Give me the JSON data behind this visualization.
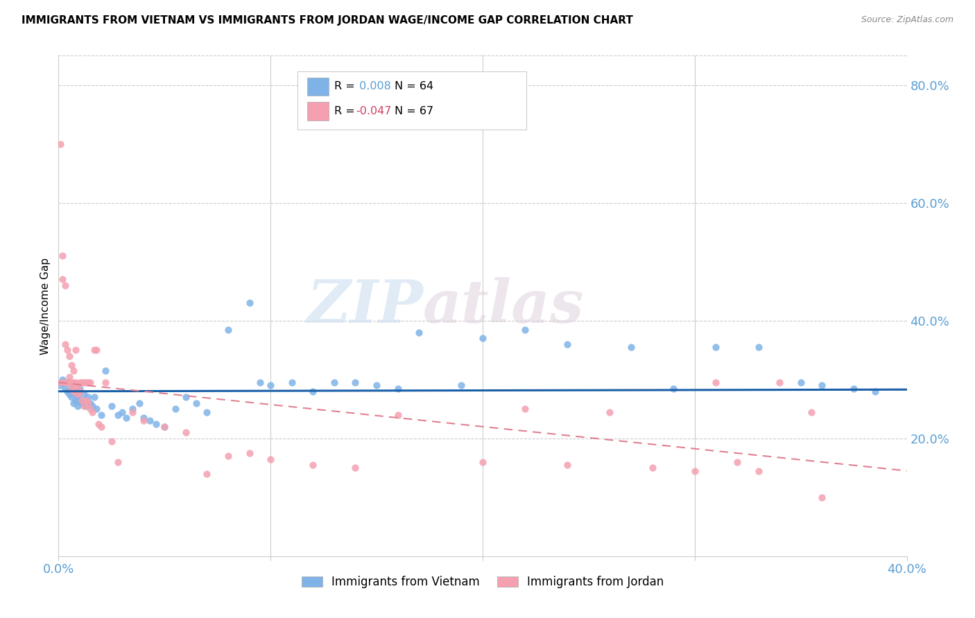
{
  "title": "IMMIGRANTS FROM VIETNAM VS IMMIGRANTS FROM JORDAN WAGE/INCOME GAP CORRELATION CHART",
  "source": "Source: ZipAtlas.com",
  "ylabel": "Wage/Income Gap",
  "right_yticks": [
    20.0,
    40.0,
    60.0,
    80.0
  ],
  "xlim": [
    0.0,
    0.4
  ],
  "ylim": [
    0.0,
    0.85
  ],
  "legend_vietnam": "Immigrants from Vietnam",
  "legend_jordan": "Immigrants from Jordan",
  "R_vietnam": 0.008,
  "N_vietnam": 64,
  "R_jordan": -0.047,
  "N_jordan": 67,
  "color_vietnam": "#7fb3e8",
  "color_jordan": "#f4a0b0",
  "color_trendline_vietnam": "#1a5fa8",
  "color_trendline_jordan": "#e08090",
  "color_axis": "#5a9fd4",
  "color_grid": "#cccccc",
  "watermark_zip": "ZIP",
  "watermark_atlas": "atlas",
  "trendline_vietnam_start": 0.28,
  "trendline_vietnam_end": 0.283,
  "trendline_jordan_start": 0.295,
  "trendline_jordan_end": 0.145,
  "vietnam_x": [
    0.001,
    0.002,
    0.003,
    0.003,
    0.004,
    0.005,
    0.005,
    0.006,
    0.006,
    0.007,
    0.007,
    0.008,
    0.008,
    0.009,
    0.009,
    0.01,
    0.01,
    0.011,
    0.012,
    0.013,
    0.014,
    0.015,
    0.016,
    0.017,
    0.018,
    0.02,
    0.022,
    0.025,
    0.028,
    0.03,
    0.032,
    0.035,
    0.038,
    0.04,
    0.043,
    0.046,
    0.05,
    0.055,
    0.06,
    0.065,
    0.07,
    0.08,
    0.09,
    0.095,
    0.1,
    0.11,
    0.12,
    0.13,
    0.14,
    0.15,
    0.16,
    0.17,
    0.19,
    0.2,
    0.22,
    0.24,
    0.27,
    0.29,
    0.31,
    0.33,
    0.35,
    0.36,
    0.375,
    0.385
  ],
  "vietnam_y": [
    0.29,
    0.3,
    0.285,
    0.295,
    0.28,
    0.295,
    0.275,
    0.285,
    0.27,
    0.28,
    0.26,
    0.275,
    0.265,
    0.27,
    0.255,
    0.285,
    0.265,
    0.26,
    0.275,
    0.255,
    0.27,
    0.26,
    0.255,
    0.27,
    0.25,
    0.24,
    0.315,
    0.255,
    0.24,
    0.245,
    0.235,
    0.25,
    0.26,
    0.235,
    0.23,
    0.225,
    0.22,
    0.25,
    0.27,
    0.26,
    0.245,
    0.385,
    0.43,
    0.295,
    0.29,
    0.295,
    0.28,
    0.295,
    0.295,
    0.29,
    0.285,
    0.38,
    0.29,
    0.37,
    0.385,
    0.36,
    0.355,
    0.285,
    0.355,
    0.355,
    0.295,
    0.29,
    0.285,
    0.28
  ],
  "jordan_x": [
    0.001,
    0.001,
    0.002,
    0.002,
    0.003,
    0.003,
    0.003,
    0.004,
    0.004,
    0.005,
    0.005,
    0.005,
    0.006,
    0.006,
    0.006,
    0.007,
    0.007,
    0.007,
    0.008,
    0.008,
    0.008,
    0.009,
    0.009,
    0.009,
    0.01,
    0.01,
    0.011,
    0.011,
    0.012,
    0.012,
    0.013,
    0.013,
    0.014,
    0.014,
    0.015,
    0.015,
    0.016,
    0.017,
    0.018,
    0.019,
    0.02,
    0.022,
    0.025,
    0.028,
    0.035,
    0.04,
    0.05,
    0.06,
    0.07,
    0.08,
    0.09,
    0.1,
    0.12,
    0.14,
    0.16,
    0.2,
    0.22,
    0.24,
    0.26,
    0.28,
    0.3,
    0.31,
    0.32,
    0.33,
    0.34,
    0.355,
    0.36
  ],
  "jordan_y": [
    0.7,
    0.295,
    0.51,
    0.47,
    0.46,
    0.36,
    0.295,
    0.35,
    0.295,
    0.34,
    0.305,
    0.295,
    0.325,
    0.295,
    0.285,
    0.315,
    0.295,
    0.28,
    0.295,
    0.28,
    0.35,
    0.29,
    0.275,
    0.29,
    0.28,
    0.295,
    0.265,
    0.295,
    0.255,
    0.295,
    0.265,
    0.295,
    0.26,
    0.295,
    0.25,
    0.295,
    0.245,
    0.35,
    0.35,
    0.225,
    0.22,
    0.295,
    0.195,
    0.16,
    0.245,
    0.23,
    0.22,
    0.21,
    0.14,
    0.17,
    0.175,
    0.165,
    0.155,
    0.15,
    0.24,
    0.16,
    0.25,
    0.155,
    0.245,
    0.15,
    0.145,
    0.295,
    0.16,
    0.145,
    0.295,
    0.245,
    0.1
  ]
}
